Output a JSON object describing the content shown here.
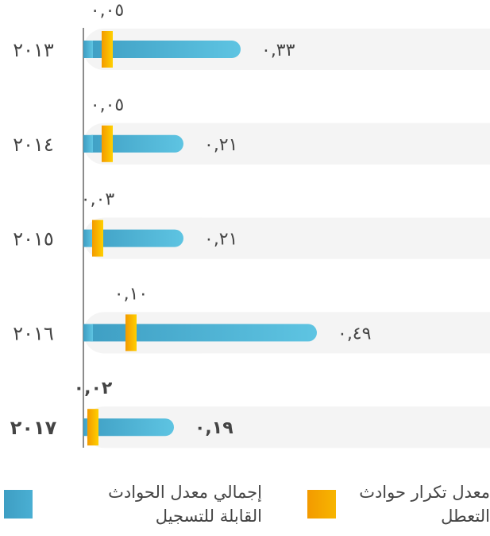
{
  "chart_data": {
    "type": "bar",
    "categories": [
      "٢٠١٣",
      "٢٠١٤",
      "٢٠١٥",
      "٢٠١٦",
      "٢٠١٧"
    ],
    "emphasis_index": 4,
    "series": [
      {
        "name": "إجمالي معدل الحوادث القابلة للتسجيل",
        "color": "#4aafd3",
        "values": [
          0.33,
          0.21,
          0.21,
          0.49,
          0.19
        ],
        "value_labels": [
          "٠,٣٣",
          "٠,٢١",
          "٠,٢١",
          "٠,٤٩",
          "٠,١٩"
        ]
      },
      {
        "name": "معدل تكرار حوادث التعطل",
        "color": "#f7b500",
        "values": [
          0.05,
          0.05,
          0.03,
          0.1,
          0.02
        ],
        "value_labels": [
          "٠,٠٥",
          "٠,٠٥",
          "٠,٠٣",
          "٠,١٠",
          "٠,٠٢"
        ]
      }
    ]
  }
}
